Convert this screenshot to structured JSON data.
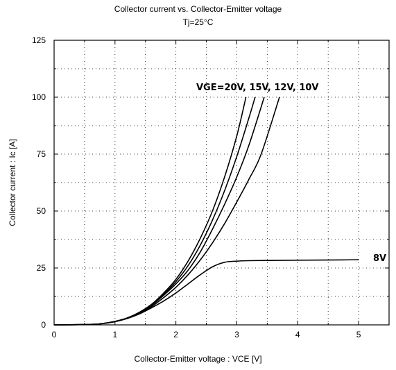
{
  "chart_data": {
    "type": "line",
    "title": "Collector current  vs.  Collector-Emitter  voltage",
    "subtitle": "Tj=25°C",
    "xlabel": "Collector-Emitter  voltage  :  VCE [V]",
    "ylabel": "Collector  current  :  Ic [A]",
    "xlim": [
      0,
      5.5
    ],
    "ylim": [
      0,
      125
    ],
    "xticks": [
      0,
      1,
      2,
      3,
      4,
      5
    ],
    "yticks": [
      0,
      25,
      50,
      75,
      100,
      125
    ],
    "grid": "dotted",
    "series": [
      {
        "name": "VGE=20V",
        "x": [
          0,
          0.6,
          0.8,
          1.0,
          1.2,
          1.4,
          1.6,
          1.8,
          2.0,
          2.2,
          2.4,
          2.6,
          2.8,
          3.0,
          3.15
        ],
        "y": [
          0,
          0.2,
          0.6,
          1.5,
          3,
          5.5,
          9,
          14,
          20,
          28,
          38,
          50,
          65,
          83,
          100
        ]
      },
      {
        "name": "15V",
        "x": [
          0,
          0.6,
          0.8,
          1.0,
          1.2,
          1.4,
          1.6,
          1.8,
          2.0,
          2.2,
          2.4,
          2.6,
          2.8,
          3.0,
          3.2,
          3.3
        ],
        "y": [
          0,
          0.2,
          0.6,
          1.5,
          3,
          5.5,
          9,
          13.5,
          19,
          26,
          35,
          46,
          59,
          74,
          91,
          100
        ]
      },
      {
        "name": "12V",
        "x": [
          0,
          0.6,
          0.8,
          1.0,
          1.2,
          1.4,
          1.6,
          1.8,
          2.0,
          2.2,
          2.4,
          2.6,
          2.8,
          3.0,
          3.2,
          3.45
        ],
        "y": [
          0,
          0.2,
          0.6,
          1.5,
          3,
          5.3,
          8.5,
          13,
          18,
          24,
          32,
          42,
          53,
          65,
          79,
          100
        ]
      },
      {
        "name": "10V",
        "x": [
          0,
          0.6,
          0.8,
          1.0,
          1.2,
          1.4,
          1.6,
          1.8,
          2.0,
          2.2,
          2.4,
          2.6,
          2.8,
          3.0,
          3.2,
          3.4,
          3.7
        ],
        "y": [
          0,
          0.2,
          0.6,
          1.5,
          3,
          5,
          8,
          12,
          16.5,
          22,
          28.5,
          36,
          44.5,
          54,
          64,
          75,
          100
        ]
      },
      {
        "name": "8V",
        "x": [
          0,
          0.6,
          0.8,
          1.0,
          1.2,
          1.4,
          1.6,
          1.8,
          2.0,
          2.2,
          2.4,
          2.6,
          2.8,
          3.0,
          3.2,
          3.5,
          4.0,
          4.5,
          5.0
        ],
        "y": [
          0,
          0.2,
          0.6,
          1.4,
          2.8,
          4.8,
          7.5,
          10.5,
          14,
          18,
          22,
          25.5,
          27.5,
          28,
          28.2,
          28.3,
          28.4,
          28.5,
          28.6
        ]
      }
    ],
    "annotations": [
      "VGE=20V, 15V, 12V, 10V",
      "8V"
    ]
  }
}
